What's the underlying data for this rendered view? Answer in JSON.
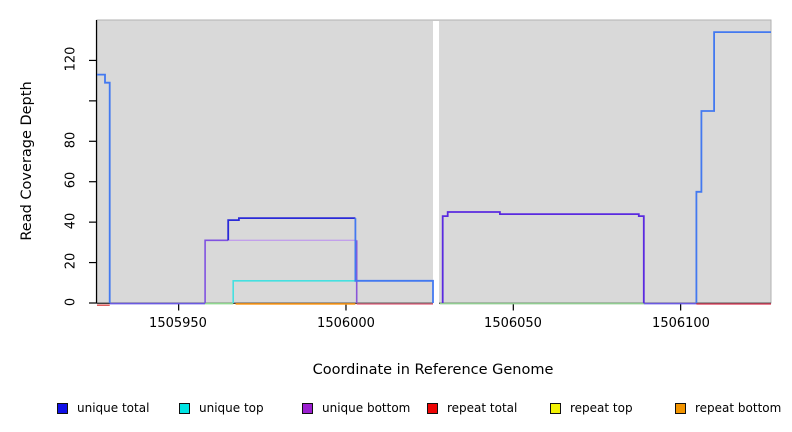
{
  "figure": {
    "background": "#ffffff",
    "plot_bg": "#d9d9d9",
    "plot_border": "#b2b2b2",
    "gap_band_color": "#ffffff",
    "axis_color": "#000000"
  },
  "chart_data": {
    "type": "line",
    "title": "",
    "xlabel": "Coordinate in Reference Genome",
    "ylabel": "Read Coverage Depth",
    "xlim": [
      1505925.6,
      1506127.0
    ],
    "ylim": [
      0,
      140
    ],
    "grid": false,
    "legend_position": "bottom",
    "x_ticks": [
      1505950,
      1506000,
      1506050,
      1506100
    ],
    "x_tick_labels": [
      "1505950",
      "1506000",
      "1506050",
      "1506100"
    ],
    "y_ticks_labeled": [
      0,
      20,
      40,
      60,
      80,
      120
    ],
    "y_tick_labels": [
      "0",
      "20",
      "40",
      "60",
      "80",
      "120"
    ],
    "y_ticks_unlabeled": [
      100
    ],
    "gap_region": [
      1506026.0,
      1506027.8
    ],
    "series": [
      {
        "name": "unique-total-left-peak",
        "color": "#4379f0",
        "width": 1.8,
        "points": [
          [
            1505925.6,
            113
          ],
          [
            1505928,
            113
          ],
          [
            1505928,
            109
          ],
          [
            1505929.4,
            109
          ],
          [
            1505929.4,
            0
          ]
        ]
      },
      {
        "name": "unique-top-plateau",
        "color": "#45e0e0",
        "width": 1.6,
        "points": [
          [
            1505966.3,
            0
          ],
          [
            1505966.3,
            11
          ],
          [
            1506002.8,
            11
          ]
        ]
      },
      {
        "name": "unique-bottom-rise",
        "color": "#8052e0",
        "width": 1.6,
        "points": [
          [
            1505957.9,
            0
          ],
          [
            1505957.9,
            31
          ],
          [
            1505964.8,
            31
          ]
        ]
      },
      {
        "name": "unique-bottom-plateau",
        "color": "#c2a0ea",
        "width": 1.4,
        "points": [
          [
            1505964.8,
            31
          ],
          [
            1506003.2,
            31
          ]
        ]
      },
      {
        "name": "unique-bottom-drop",
        "color": "#8a55d8",
        "width": 1.6,
        "points": [
          [
            1506003.2,
            31
          ],
          [
            1506003.2,
            0
          ]
        ]
      },
      {
        "name": "unique-total-plateau-42",
        "color": "#2a2ad8",
        "width": 1.8,
        "points": [
          [
            1505964.8,
            31
          ],
          [
            1505964.8,
            41
          ],
          [
            1505968,
            41
          ],
          [
            1505968,
            42
          ],
          [
            1506002.8,
            42
          ]
        ]
      },
      {
        "name": "unique-total-step-11",
        "color": "#4379f0",
        "width": 1.8,
        "points": [
          [
            1506002.8,
            42
          ],
          [
            1506002.8,
            11
          ],
          [
            1506026,
            11
          ],
          [
            1506026,
            0
          ]
        ]
      },
      {
        "name": "right-unique-plateau-44",
        "color": "#5a2ae0",
        "width": 1.8,
        "points": [
          [
            1506028.9,
            0
          ],
          [
            1506028.9,
            43
          ],
          [
            1506030.4,
            43
          ],
          [
            1506030.4,
            45
          ],
          [
            1506046,
            45
          ],
          [
            1506046,
            44
          ],
          [
            1506087.5,
            44
          ],
          [
            1506087.5,
            43
          ],
          [
            1506089,
            43
          ],
          [
            1506089,
            0
          ]
        ]
      },
      {
        "name": "right-unique-total-steps",
        "color": "#4379f0",
        "width": 1.8,
        "points": [
          [
            1506104.7,
            0
          ],
          [
            1506104.7,
            55
          ],
          [
            1506106.2,
            55
          ],
          [
            1506106.2,
            95
          ],
          [
            1506110,
            95
          ],
          [
            1506110,
            134
          ],
          [
            1506127,
            134
          ]
        ]
      }
    ],
    "baseline_segments": [
      {
        "name": "baseline-red-left",
        "color": "#e06060",
        "from": 1505925.6,
        "to": 1505929.4,
        "dy": 1.6
      },
      {
        "name": "baseline-periwinkle-1",
        "color": "#6a5ae0",
        "from": 1505929.4,
        "to": 1505957.9,
        "dy": 0
      },
      {
        "name": "baseline-green-1",
        "color": "#8fd88f",
        "from": 1505957.9,
        "to": 1505966.3,
        "dy": 0
      },
      {
        "name": "baseline-orange",
        "color": "#ff9d20",
        "from": 1505967.0,
        "to": 1506002.8,
        "dy": 0.3
      },
      {
        "name": "baseline-pink",
        "color": "#e87c94",
        "from": 1506003.2,
        "to": 1506026.0,
        "dy": 0.4
      },
      {
        "name": "baseline-green-2",
        "color": "#90cc90",
        "from": 1506028.0,
        "to": 1506089.0,
        "dy": 0
      },
      {
        "name": "baseline-periwinkle-2",
        "color": "#6a5ae0",
        "from": 1506089.0,
        "to": 1506104.7,
        "dy": 0
      },
      {
        "name": "baseline-red-right",
        "color": "#e0556e",
        "from": 1506104.7,
        "to": 1506127.0,
        "dy": 0.4
      }
    ]
  },
  "legend": {
    "items": [
      {
        "label": "unique total",
        "color": "#1010e8"
      },
      {
        "label": "unique top",
        "color": "#00e4e4"
      },
      {
        "label": "unique bottom",
        "color": "#9b1fd0"
      },
      {
        "label": "repeat total",
        "color": "#ee0404"
      },
      {
        "label": "repeat top",
        "color": "#f2f204"
      },
      {
        "label": "repeat bottom",
        "color": "#f29400"
      }
    ]
  }
}
